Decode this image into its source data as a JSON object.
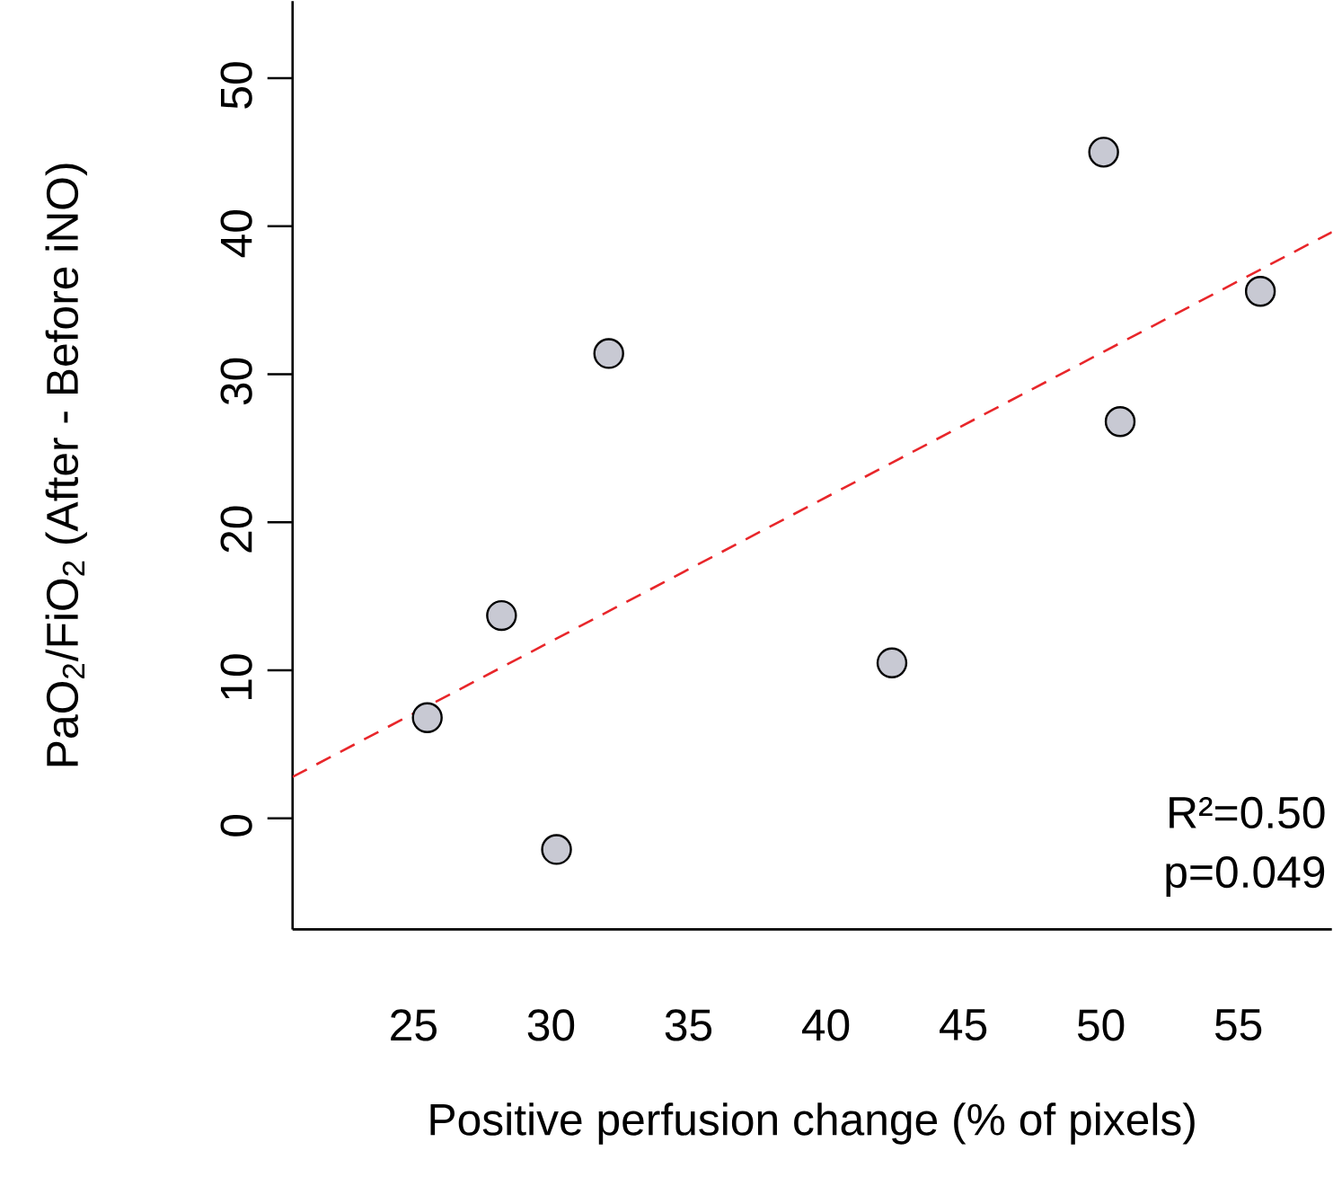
{
  "chart_data": {
    "type": "scatter",
    "xlabel": "Positive perfusion change (% of pixels)",
    "ylabel": "PaO$_{2}$/FiO$_{2}$  (After - Before iNO)",
    "xlim": [
      20.6,
      58.4
    ],
    "ylim": [
      -7.5,
      55.2
    ],
    "xticks": [
      25,
      30,
      35,
      40,
      45,
      50,
      55
    ],
    "yticks": [
      0,
      10,
      20,
      30,
      40,
      50
    ],
    "grid": false,
    "annotations": [
      "R²=0.50",
      "p=0.049"
    ],
    "series": [
      {
        "color": "#c8c9d3",
        "marker": "circle",
        "x": [
          25.5,
          28.2,
          30.2,
          32.1,
          42.4,
          50.1,
          50.7,
          55.8
        ],
        "values": [
          6.8,
          13.7,
          -2.1,
          31.4,
          10.5,
          45.0,
          26.8,
          35.6
        ]
      },
      {
        "type": "line",
        "color": "#e8262a",
        "line_style": "dashed",
        "marker": "none",
        "x": [
          20.6,
          58.4
        ],
        "values": [
          2.8,
          39.6
        ]
      }
    ]
  }
}
